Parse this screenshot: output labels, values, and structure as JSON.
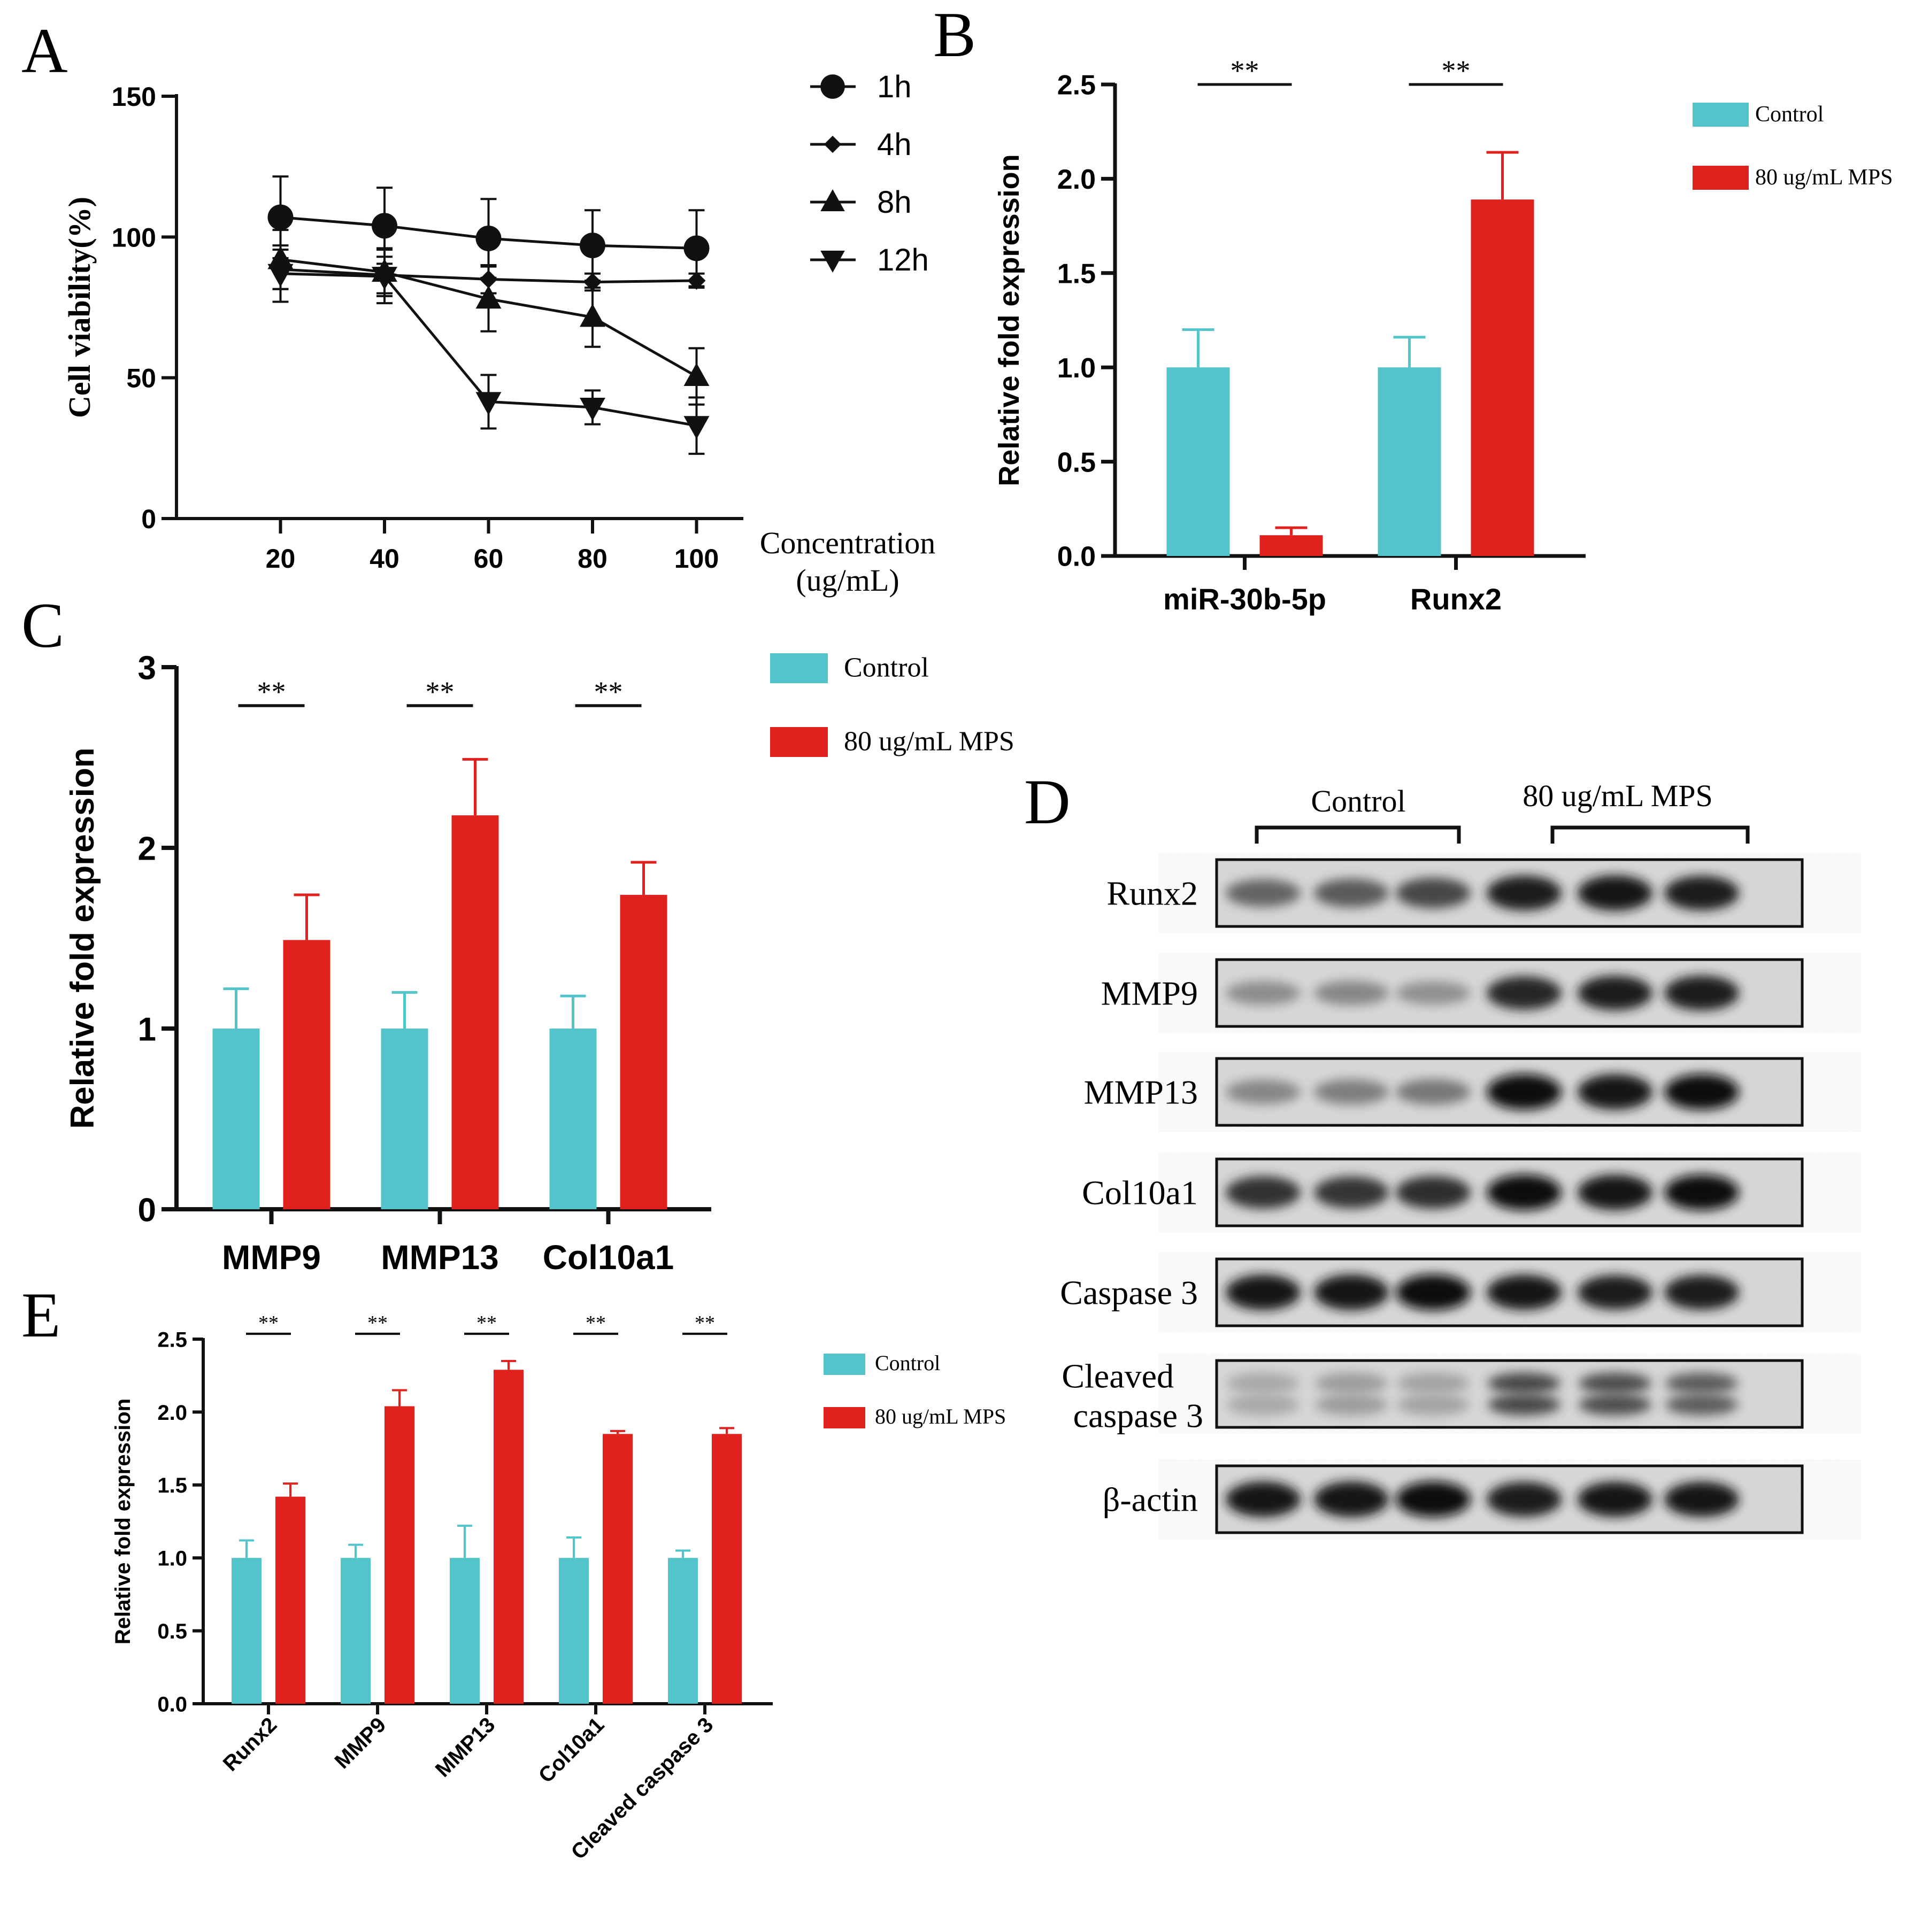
{
  "colors": {
    "control": "#52C4CA",
    "treatment": "#E0211E",
    "axis": "#111111"
  },
  "panel_labels": {
    "a": "A",
    "b": "B",
    "c": "C",
    "d": "D",
    "e": "E"
  },
  "chart_data": [
    {
      "panel": "A",
      "type": "line",
      "title": "",
      "xlabel": "Concentration",
      "xlabel_unit": "(ug/mL)",
      "ylabel": "Cell viability(%)",
      "x": [
        20,
        40,
        60,
        80,
        100
      ],
      "xlim": [
        0,
        109
      ],
      "ylim": [
        0,
        150
      ],
      "yticks": [
        0,
        50,
        100,
        150
      ],
      "grid": false,
      "legend": "top-right",
      "series": [
        {
          "name": "1h",
          "marker": "circle",
          "values": [
            107,
            104,
            99.5,
            97,
            96
          ],
          "errors": [
            14.5,
            13.5,
            14,
            12.5,
            13.5
          ]
        },
        {
          "name": "4h",
          "marker": "diamond",
          "values": [
            88.5,
            86.5,
            85,
            84,
            84.5
          ],
          "errors": [
            7,
            6.5,
            5,
            3,
            2.5
          ]
        },
        {
          "name": "8h",
          "marker": "triangle-up",
          "values": [
            92,
            87.5,
            78,
            71.5,
            50.5
          ],
          "errors": [
            10.5,
            8.5,
            11.5,
            10.5,
            10
          ]
        },
        {
          "name": "12h",
          "marker": "triangle-down",
          "values": [
            87,
            86,
            41.5,
            39.5,
            33
          ],
          "errors": [
            10,
            9.5,
            9.5,
            6,
            10
          ]
        }
      ]
    },
    {
      "panel": "B",
      "type": "bar",
      "title": "",
      "xlabel": "",
      "ylabel": "Relative fold expression",
      "categories": [
        "miR-30b-5p",
        "Runx2"
      ],
      "ylim": [
        0,
        2.5
      ],
      "yticks": [
        "0.0",
        "0.5",
        "1.0",
        "1.5",
        "2.0",
        "2.5"
      ],
      "legend": "top-right",
      "series": [
        {
          "name": "Control",
          "values": [
            1.0,
            1.0
          ],
          "errors": [
            0.2,
            0.16
          ]
        },
        {
          "name": "80 ug/mL MPS",
          "values": [
            0.11,
            1.89
          ],
          "errors": [
            0.04,
            0.25
          ]
        }
      ],
      "annotations": [
        "**",
        "**"
      ]
    },
    {
      "panel": "C",
      "type": "bar",
      "title": "",
      "xlabel": "",
      "ylabel": "Relative fold expression",
      "categories": [
        "MMP9",
        "MMP13",
        "Col10a1"
      ],
      "ylim": [
        0,
        3
      ],
      "yticks": [
        "0",
        "1",
        "2",
        "3"
      ],
      "legend": "top-right",
      "series": [
        {
          "name": "Control",
          "values": [
            1.0,
            1.0,
            1.0
          ],
          "errors": [
            0.22,
            0.2,
            0.18
          ]
        },
        {
          "name": "80 ug/mL MPS",
          "values": [
            1.49,
            2.18,
            1.74
          ],
          "errors": [
            0.25,
            0.31,
            0.18
          ]
        }
      ],
      "annotations": [
        "**",
        "**",
        "**"
      ]
    },
    {
      "panel": "E",
      "type": "bar",
      "title": "",
      "xlabel": "",
      "ylabel": "Relative fold expression",
      "categories": [
        "Runx2",
        "MMP9",
        "MMP13",
        "Col10a1",
        "Cleaved caspase 3"
      ],
      "ylim": [
        0,
        2.5
      ],
      "yticks": [
        "0.0",
        "0.5",
        "1.0",
        "1.5",
        "2.0",
        "2.5"
      ],
      "legend": "top-right",
      "series": [
        {
          "name": "Control",
          "values": [
            1.0,
            1.0,
            1.0,
            1.0,
            1.0
          ],
          "errors": [
            0.12,
            0.09,
            0.22,
            0.14,
            0.05
          ]
        },
        {
          "name": "80 ug/mL MPS",
          "values": [
            1.42,
            2.04,
            2.29,
            1.85,
            1.85
          ],
          "errors": [
            0.09,
            0.11,
            0.06,
            0.02,
            0.04
          ]
        }
      ],
      "annotations": [
        "**",
        "**",
        "**",
        "**",
        "**"
      ]
    }
  ],
  "blot": {
    "groups": [
      "Control",
      "80 ug/mL MPS"
    ],
    "bands": [
      {
        "label": "Runx2",
        "intensity": [
          0.55,
          0.6,
          0.7,
          0.92,
          0.95,
          0.9
        ],
        "double": false
      },
      {
        "label": "MMP9",
        "intensity": [
          0.35,
          0.38,
          0.33,
          0.85,
          0.9,
          0.92
        ],
        "double": false
      },
      {
        "label": "MMP13",
        "intensity": [
          0.38,
          0.42,
          0.45,
          0.97,
          0.95,
          0.97
        ],
        "double": false
      },
      {
        "label": "Col10a1",
        "intensity": [
          0.8,
          0.78,
          0.82,
          0.97,
          0.95,
          0.97
        ],
        "double": false
      },
      {
        "label": "Caspase 3",
        "intensity": [
          0.95,
          0.96,
          0.98,
          0.93,
          0.9,
          0.92
        ],
        "double": false
      },
      {
        "label": "Cleaved caspase 3",
        "label_line1": "Cleaved",
        "label_line2": "caspase 3",
        "intensity": [
          0.22,
          0.28,
          0.25,
          0.72,
          0.7,
          0.62
        ],
        "double": true
      },
      {
        "label": "β-actin",
        "intensity": [
          0.95,
          0.96,
          0.97,
          0.92,
          0.94,
          0.93
        ],
        "double": false
      }
    ]
  }
}
